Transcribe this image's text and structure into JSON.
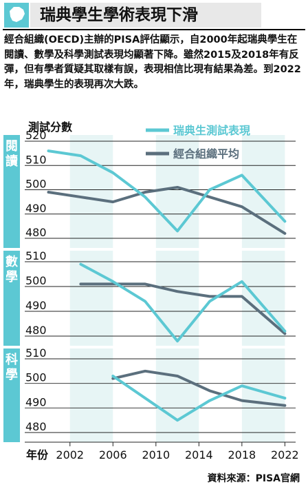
{
  "header": {
    "title": "瑞典學生學術表現下滑"
  },
  "description": "經合組織(OECD)主辦的PISA評估顯示，自2000年起瑞典學生在閱讀、數學及科學測試表現均顯著下降。雖然2015及2018年有反彈，但有學者質疑其取樣有誤，表現相信比現有結果為差。到2022年，瑞典學生的表現再次大跌。",
  "source": "資料來源：PISA官網",
  "colors": {
    "sweden": "#5cc8d3",
    "oecd": "#5b6f7d",
    "band": "#e7f5f5",
    "label_bg": "#5cc8d3"
  },
  "chart_data": {
    "type": "line",
    "ylabel": "測試分數",
    "xlabel": "年份",
    "x_ticks": [
      2002,
      2006,
      2010,
      2014,
      2018,
      2022
    ],
    "legend": [
      "瑞典生測試表現",
      "經合組織平均"
    ],
    "legend_placement": "top-right",
    "panels": [
      {
        "label": "閱讀",
        "y_ticks": [
          520,
          510,
          500,
          490,
          480
        ],
        "ylim": [
          478,
          522
        ],
        "series": [
          {
            "name": "瑞典生測試表現",
            "x": [
              2000,
              2003,
              2006,
              2009,
              2012,
              2015,
              2018,
              2022
            ],
            "values": [
              516,
              514,
              507,
              497,
              483,
              500,
              506,
              487
            ]
          },
          {
            "name": "經合組織平均",
            "x": [
              2000,
              2003,
              2006,
              2009,
              2012,
              2015,
              2018,
              2022
            ],
            "values": [
              499,
              497,
              495,
              499,
              501,
              497,
              493,
              482
            ]
          }
        ]
      },
      {
        "label": "數學",
        "y_ticks": [
          510,
          500,
          490,
          480
        ],
        "ylim": [
          477,
          512
        ],
        "series": [
          {
            "name": "瑞典生測試表現",
            "x": [
              2003,
              2006,
              2009,
              2012,
              2015,
              2018,
              2022
            ],
            "values": [
              509,
              502,
              494,
              478,
              494,
              502,
              482
            ]
          },
          {
            "name": "經合組織平均",
            "x": [
              2003,
              2006,
              2009,
              2012,
              2015,
              2018,
              2022
            ],
            "values": [
              501,
              501,
              501,
              498,
              496,
              496,
              481
            ]
          }
        ]
      },
      {
        "label": "科學",
        "y_ticks": [
          510,
          500,
          490,
          480
        ],
        "ylim": [
          477,
          512
        ],
        "series": [
          {
            "name": "瑞典生測試表現",
            "x": [
              2006,
              2009,
              2012,
              2015,
              2018,
              2022
            ],
            "values": [
              503,
              494,
              485,
              493,
              499,
              494
            ]
          },
          {
            "name": "經合組織平均",
            "x": [
              2006,
              2009,
              2012,
              2015,
              2018,
              2022
            ],
            "values": [
              502,
              505,
              503,
              497,
              493,
              491
            ]
          }
        ]
      }
    ]
  }
}
